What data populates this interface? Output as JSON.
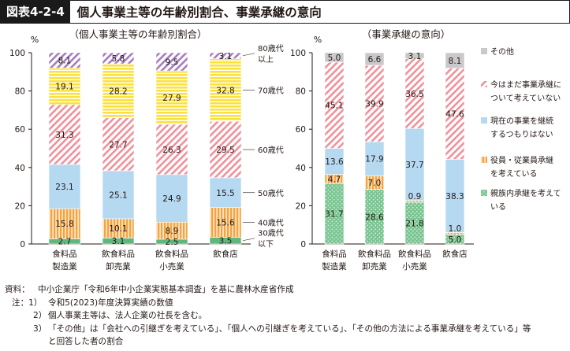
{
  "header": {
    "label": "図表4-2-4",
    "title": "個人事業主等の年齢別割合、事業承継の意向"
  },
  "chart_data": [
    {
      "type": "bar",
      "stacked": true,
      "title": "（個人事業主等の年齢別割合）",
      "ylabel": "%",
      "ylim": [
        0,
        100
      ],
      "yticks": [
        "0",
        "20",
        "40",
        "60",
        "80",
        "100"
      ],
      "grid": false,
      "legend_position": "right",
      "categories": [
        [
          "食料品",
          "製造業"
        ],
        [
          "飲食料品",
          "卸売業"
        ],
        [
          "飲食料品",
          "小売業"
        ],
        [
          "飲食店"
        ]
      ],
      "series": [
        {
          "name": [
            "30歳代",
            "以下"
          ],
          "color": "#5fb77e",
          "pattern": "solid",
          "values": [
            2.7,
            3.1,
            2.5,
            3.5
          ]
        },
        {
          "name": [
            "40歳代"
          ],
          "color": "#f5a340",
          "pattern": "vstripes",
          "values": [
            15.8,
            10.1,
            8.9,
            15.6
          ]
        },
        {
          "name": [
            "50歳代"
          ],
          "color": "#b6d9f2",
          "pattern": "solid",
          "values": [
            23.1,
            25.1,
            24.9,
            15.5
          ]
        },
        {
          "name": [
            "60歳代"
          ],
          "color": "#f0909a",
          "pattern": "diag",
          "values": [
            31.3,
            27.7,
            26.3,
            29.5
          ]
        },
        {
          "name": [
            "70歳代"
          ],
          "color": "#fbe13c",
          "pattern": "hstripes",
          "values": [
            19.1,
            28.2,
            27.9,
            32.8
          ]
        },
        {
          "name": [
            "80歳代",
            "以上"
          ],
          "color": "#a57cc2",
          "pattern": "diag",
          "values": [
            8.1,
            5.8,
            9.5,
            3.1
          ]
        }
      ]
    },
    {
      "type": "bar",
      "stacked": true,
      "title": "（事業承継の意向）",
      "ylabel": "%",
      "ylim": [
        0,
        100
      ],
      "yticks": [
        "0",
        "20",
        "40",
        "60",
        "80",
        "100"
      ],
      "grid": false,
      "legend_position": "right",
      "categories": [
        [
          "食料品",
          "製造業"
        ],
        [
          "飲食料品",
          "卸売業"
        ],
        [
          "飲食料品",
          "小売業"
        ],
        [
          "飲食店"
        ]
      ],
      "series": [
        {
          "name": [
            "親族内承継を考えて",
            "いる"
          ],
          "color": "#7dc593",
          "pattern": "dots",
          "values": [
            31.7,
            28.6,
            21.8,
            5.0
          ]
        },
        {
          "name": [
            "役員・従業員承継",
            "を考えている"
          ],
          "color": "#f5a340",
          "pattern": "vstripes",
          "values": [
            4.7,
            7.0,
            0.9,
            1.0
          ]
        },
        {
          "name": [
            "現在の事業を継続",
            "するつもりはない"
          ],
          "color": "#b6d9f2",
          "pattern": "solid",
          "values": [
            13.6,
            17.9,
            37.7,
            38.3
          ]
        },
        {
          "name": [
            "今はまだ事業承継に",
            "ついて考えていない"
          ],
          "color": "#f0909a",
          "pattern": "diag",
          "values": [
            45.1,
            39.9,
            36.5,
            47.6
          ]
        },
        {
          "name": [
            "その他"
          ],
          "color": "#c9c9c9",
          "pattern": "solid",
          "values": [
            5.0,
            6.6,
            3.1,
            8.1
          ]
        }
      ]
    }
  ],
  "notes": [
    {
      "label": "資料：",
      "text": "中小企業庁「令和6年中小企業実態基本調査」を基に農林水産省作成"
    },
    {
      "label": "注：1）",
      "text": "令和5(2023)年度決算実績の数値"
    },
    {
      "label": "2）",
      "text": "個人事業主等は、法人企業の社長を含む。"
    },
    {
      "label": "3）",
      "text": "「その他」は「会社への引継ぎを考えている」、「個人への引継ぎを考えている」、「その他の方法による事業承継を考えている」等"
    },
    {
      "label": "",
      "text": "と回答した者の割合"
    }
  ]
}
